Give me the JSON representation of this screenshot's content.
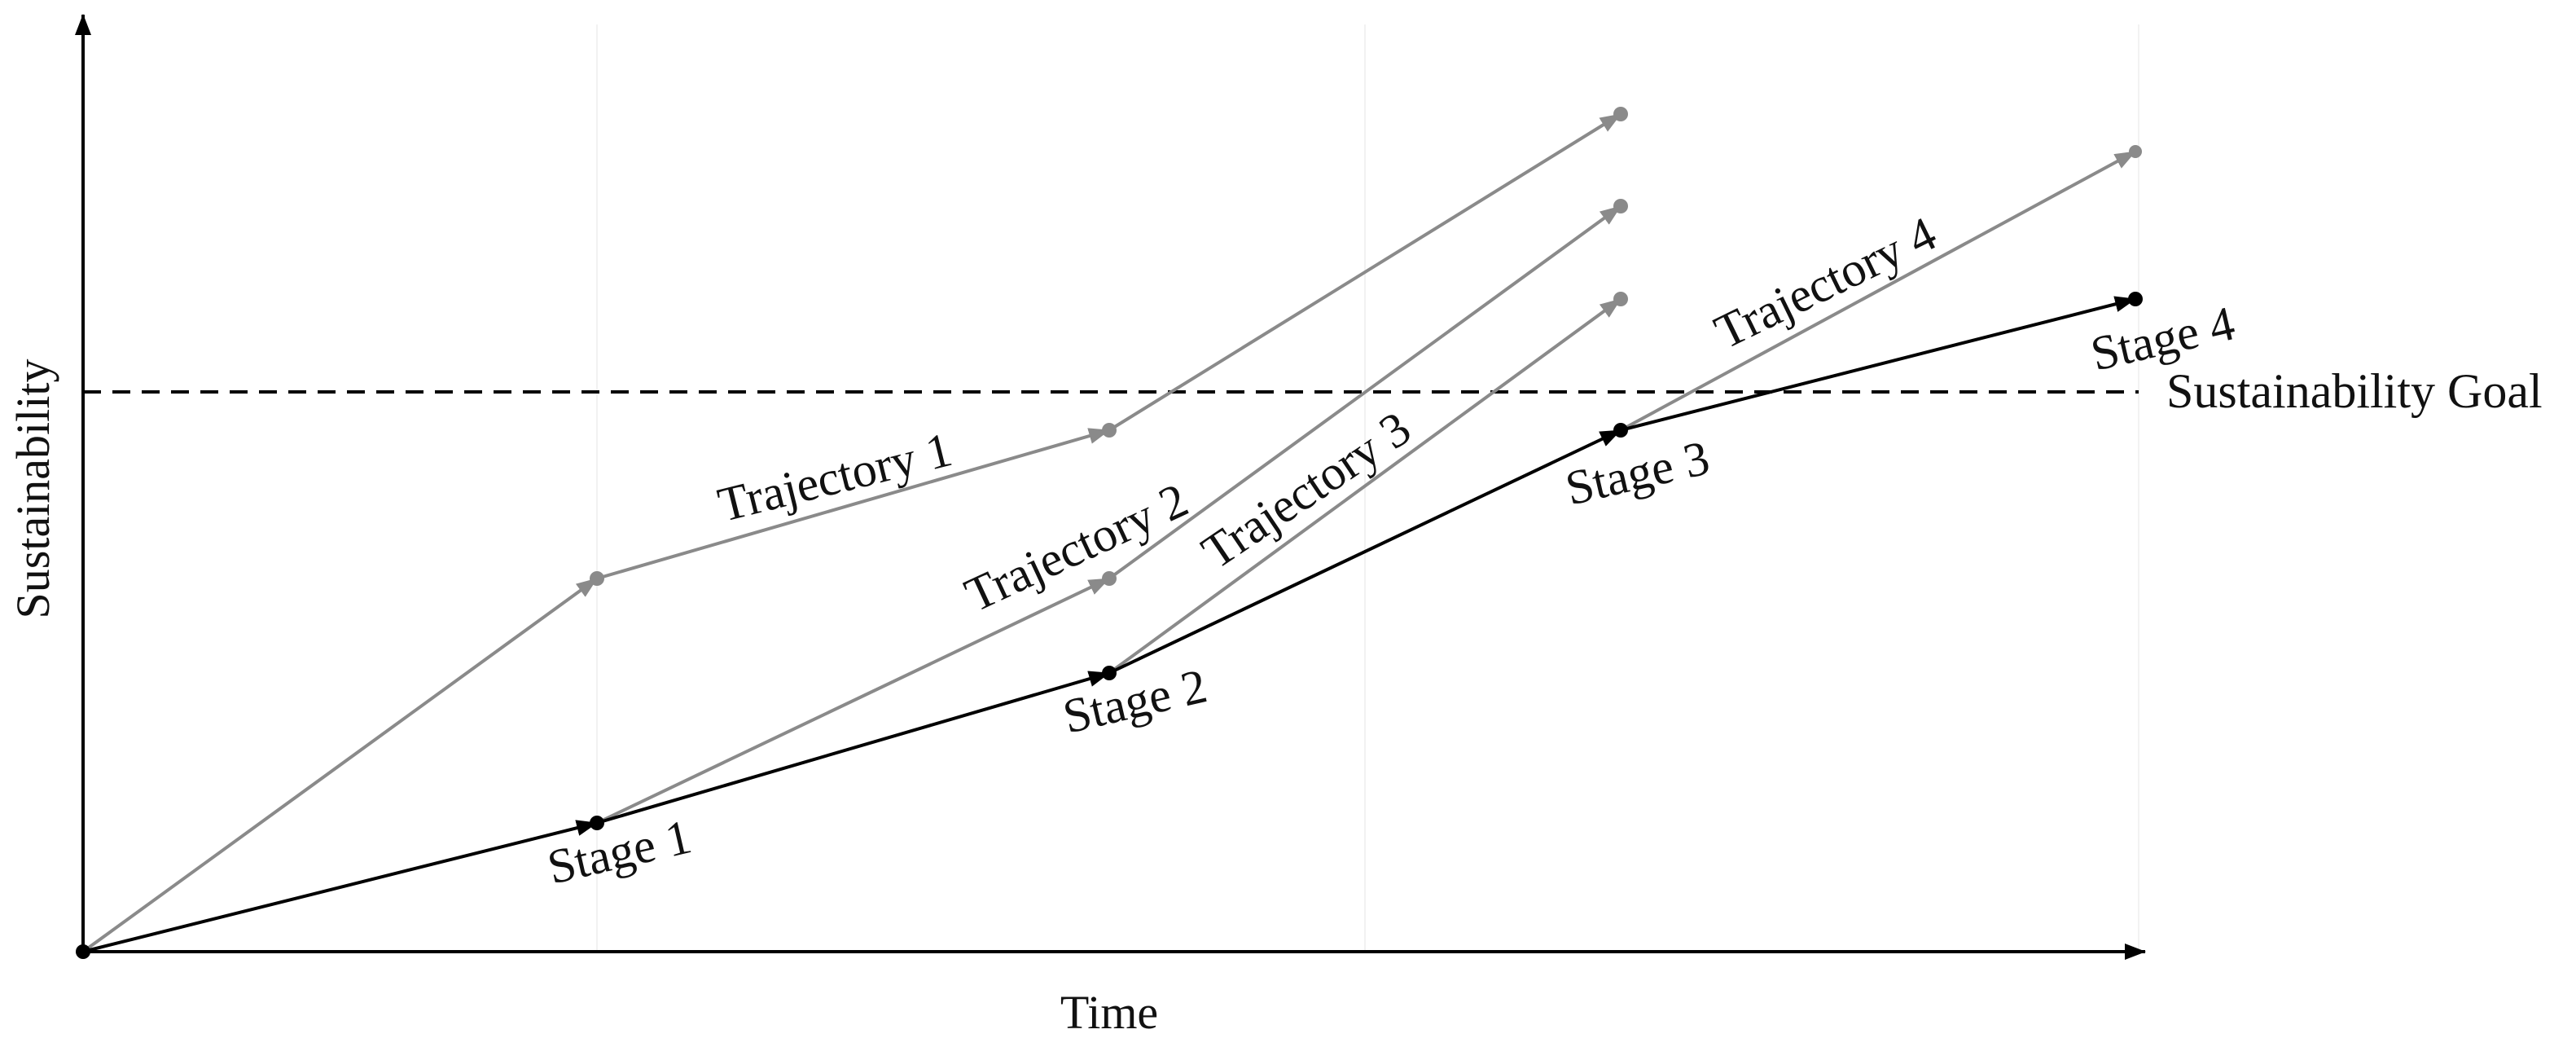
{
  "axes": {
    "x_label": "Time",
    "y_label": "Sustainability"
  },
  "goal": {
    "label": "Sustainability Goal"
  },
  "main_path": {
    "stages": [
      {
        "label": "Stage 1"
      },
      {
        "label": "Stage 2"
      },
      {
        "label": "Stage 3"
      },
      {
        "label": "Stage 4"
      }
    ]
  },
  "trajectories": [
    {
      "label": "Trajectory 1"
    },
    {
      "label": "Trajectory 2"
    },
    {
      "label": "Trajectory 3"
    },
    {
      "label": "Trajectory 4"
    }
  ],
  "colors": {
    "main_path": "#000000",
    "trajectory": "#8a8a8a",
    "axis": "#000000",
    "goal_line": "#000000"
  }
}
